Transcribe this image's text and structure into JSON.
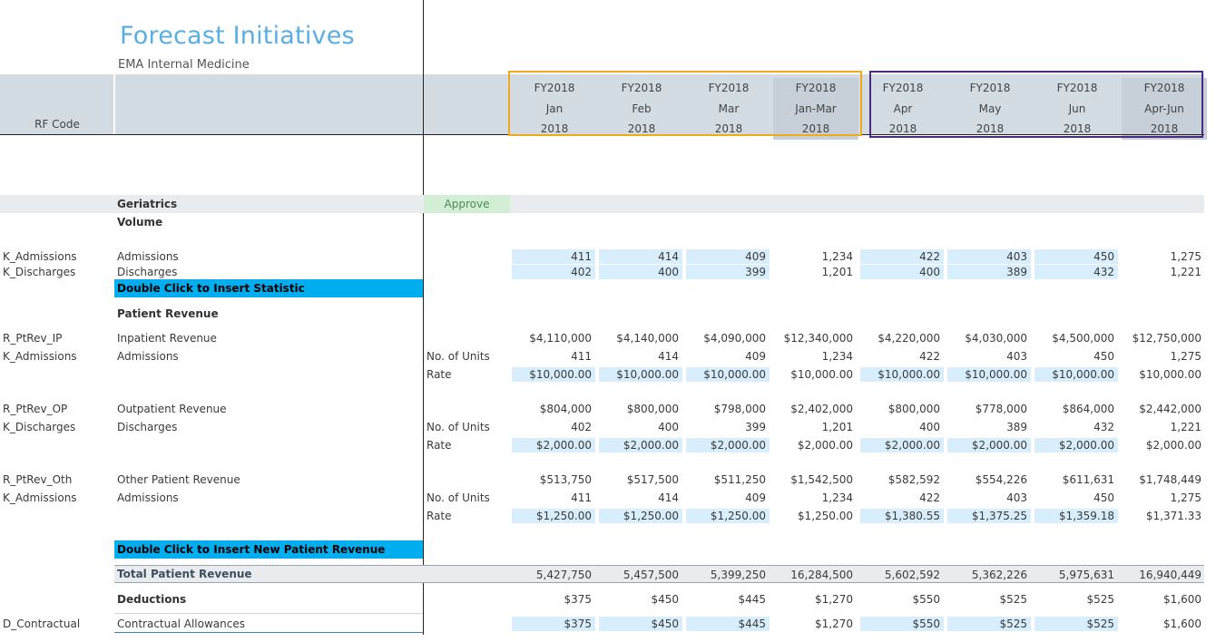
{
  "page": {
    "title": "Forecast Initiatives",
    "subtitle": "EMA Internal Medicine"
  },
  "header": {
    "rf_code_label": "RF Code",
    "periods": [
      {
        "fy": "FY2018",
        "m": "Jan",
        "y": "2018",
        "quarter": false
      },
      {
        "fy": "FY2018",
        "m": "Feb",
        "y": "2018",
        "quarter": false
      },
      {
        "fy": "FY2018",
        "m": "Mar",
        "y": "2018",
        "quarter": false
      },
      {
        "fy": "FY2018",
        "m": "Jan-Mar",
        "y": "2018",
        "quarter": true
      },
      {
        "fy": "FY2018",
        "m": "Apr",
        "y": "2018",
        "quarter": false
      },
      {
        "fy": "FY2018",
        "m": "May",
        "y": "2018",
        "quarter": false
      },
      {
        "fy": "FY2018",
        "m": "Jun",
        "y": "2018",
        "quarter": false
      },
      {
        "fy": "FY2018",
        "m": "Apr-Jun",
        "y": "2018",
        "quarter": true
      }
    ]
  },
  "section": {
    "name": "Geriatrics",
    "approve": "Approve",
    "volume": "Volume"
  },
  "volume_rows": [
    {
      "code": "K_Admissions",
      "label": "Admissions",
      "values": [
        "411",
        "414",
        "409",
        "1,234",
        "422",
        "403",
        "450",
        "1,275"
      ]
    },
    {
      "code": "K_Discharges",
      "label": "Discharges",
      "values": [
        "402",
        "400",
        "399",
        "1,201",
        "400",
        "389",
        "432",
        "1,221"
      ]
    }
  ],
  "insert_statistic": "Double Click to Insert Statistic",
  "patient_revenue_heading": "Patient Revenue",
  "revenue_groups": [
    {
      "code": "R_PtRev_IP",
      "label": "Inpatient Revenue",
      "stat_code": "K_Admissions",
      "stat_label": "Admissions",
      "revenue": [
        "$4,110,000",
        "$4,140,000",
        "$4,090,000",
        "$12,340,000",
        "$4,220,000",
        "$4,030,000",
        "$4,500,000",
        "$12,750,000"
      ],
      "units_label": "No. of Units",
      "units": [
        "411",
        "414",
        "409",
        "1,234",
        "422",
        "403",
        "450",
        "1,275"
      ],
      "rate_label": "Rate",
      "rate": [
        "$10,000.00",
        "$10,000.00",
        "$10,000.00",
        "$10,000.00",
        "$10,000.00",
        "$10,000.00",
        "$10,000.00",
        "$10,000.00"
      ]
    },
    {
      "code": "R_PtRev_OP",
      "label": "Outpatient Revenue",
      "stat_code": "K_Discharges",
      "stat_label": "Discharges",
      "revenue": [
        "$804,000",
        "$800,000",
        "$798,000",
        "$2,402,000",
        "$800,000",
        "$778,000",
        "$864,000",
        "$2,442,000"
      ],
      "units_label": "No. of Units",
      "units": [
        "402",
        "400",
        "399",
        "1,201",
        "400",
        "389",
        "432",
        "1,221"
      ],
      "rate_label": "Rate",
      "rate": [
        "$2,000.00",
        "$2,000.00",
        "$2,000.00",
        "$2,000.00",
        "$2,000.00",
        "$2,000.00",
        "$2,000.00",
        "$2,000.00"
      ]
    },
    {
      "code": "R_PtRev_Oth",
      "label": "Other Patient Revenue",
      "stat_code": "K_Admissions",
      "stat_label": "Admissions",
      "revenue": [
        "$513,750",
        "$517,500",
        "$511,250",
        "$1,542,500",
        "$582,592",
        "$554,226",
        "$611,631",
        "$1,748,449"
      ],
      "units_label": "No. of Units",
      "units": [
        "411",
        "414",
        "409",
        "1,234",
        "422",
        "403",
        "450",
        "1,275"
      ],
      "rate_label": "Rate",
      "rate": [
        "$1,250.00",
        "$1,250.00",
        "$1,250.00",
        "$1,250.00",
        "$1,380.55",
        "$1,375.25",
        "$1,359.18",
        "$1,371.33"
      ]
    }
  ],
  "insert_revenue": "Double Click to Insert New Patient Revenue",
  "total": {
    "label": "Total Patient Revenue",
    "values": [
      "5,427,750",
      "5,457,500",
      "5,399,250",
      "16,284,500",
      "5,602,592",
      "5,362,226",
      "5,975,631",
      "16,940,449"
    ]
  },
  "deductions": {
    "label": "Deductions",
    "values": [
      "$375",
      "$450",
      "$445",
      "$1,270",
      "$550",
      "$525",
      "$525",
      "$1,600"
    ]
  },
  "contractual": {
    "code": "D_Contractual",
    "label": "Contractual Allowances",
    "values": [
      "$375",
      "$450",
      "$445",
      "$1,270",
      "$550",
      "$525",
      "$525",
      "$1,600"
    ]
  },
  "colors": {
    "title": "#5aaee6",
    "input_cell": "#d8eefc",
    "insert_button": "#00aeef",
    "selection_q1": "#f0ab1c",
    "selection_q2": "#4a2b7f",
    "approve": "#d2eed5"
  }
}
